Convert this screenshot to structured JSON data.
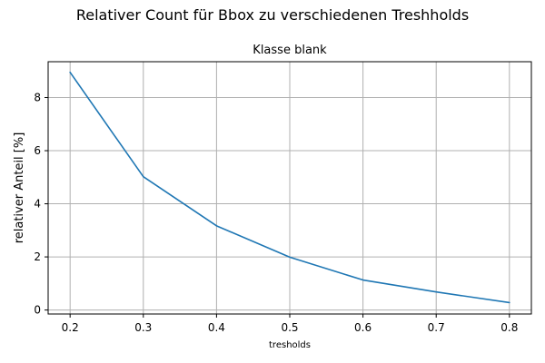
{
  "chart_data": {
    "type": "line",
    "title": "Relativer Count für Bbox zu verschiedenen Treshholds",
    "subtitle": "Klasse blank",
    "xlabel": "tresholds",
    "ylabel": "relativer Anteil [%]",
    "x": [
      0.2,
      0.3,
      0.4,
      0.5,
      0.6,
      0.7,
      0.8
    ],
    "xticks": [
      "0.2",
      "0.3",
      "0.4",
      "0.5",
      "0.6",
      "0.7",
      "0.8"
    ],
    "yticks": [
      "0",
      "2",
      "4",
      "6",
      "8"
    ],
    "xlim": [
      0.17,
      0.83
    ],
    "ylim": [
      -0.15,
      9.35
    ],
    "grid": true,
    "series": [
      {
        "values": [
          8.95,
          5.02,
          3.17,
          1.99,
          1.13,
          0.68,
          0.28
        ],
        "color": "#1f77b4"
      }
    ]
  }
}
